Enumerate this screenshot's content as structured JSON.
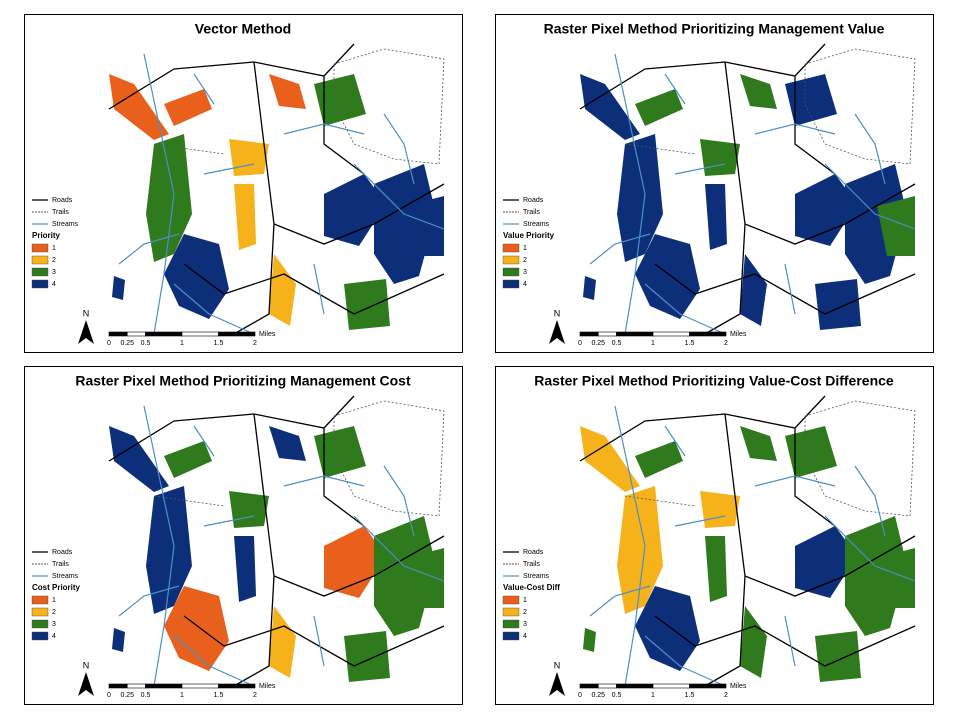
{
  "panels": [
    {
      "title": "Vector Method",
      "legend": {
        "lines": [
          "Roads",
          "Trails",
          "Streams"
        ],
        "heading": "Priority",
        "classes": [
          {
            "label": "1",
            "color": "#e8601c"
          },
          {
            "label": "2",
            "color": "#f5b21b"
          },
          {
            "label": "3",
            "color": "#2f7a1c"
          },
          {
            "label": "4",
            "color": "#0d2f7a"
          }
        ]
      },
      "scale": {
        "labels": [
          "0",
          "0.25",
          "0.5",
          "1",
          "1.5",
          "2"
        ],
        "unit": "Miles"
      },
      "north": "N"
    },
    {
      "title": "Raster Pixel Method Prioritizing Management Value",
      "legend": {
        "lines": [
          "Roads",
          "Trails",
          "Streams"
        ],
        "heading": "Value Priority",
        "classes": [
          {
            "label": "1",
            "color": "#e8601c"
          },
          {
            "label": "2",
            "color": "#f5b21b"
          },
          {
            "label": "3",
            "color": "#2f7a1c"
          },
          {
            "label": "4",
            "color": "#0d2f7a"
          }
        ]
      },
      "scale": {
        "labels": [
          "0",
          "0.25",
          "0.5",
          "1",
          "1.5",
          "2"
        ],
        "unit": "Miles"
      },
      "north": "N"
    },
    {
      "title": "Raster Pixel Method Prioritizing Management Cost",
      "legend": {
        "lines": [
          "Roads",
          "Trails",
          "Streams"
        ],
        "heading": "Cost Priority",
        "classes": [
          {
            "label": "1",
            "color": "#e8601c"
          },
          {
            "label": "2",
            "color": "#f5b21b"
          },
          {
            "label": "3",
            "color": "#2f7a1c"
          },
          {
            "label": "4",
            "color": "#0d2f7a"
          }
        ]
      },
      "scale": {
        "labels": [
          "0",
          "0.25",
          "0.5",
          "1",
          "1.5",
          "2"
        ],
        "unit": "Miles"
      },
      "north": "N"
    },
    {
      "title": "Raster Pixel Method Prioritizing Value-Cost Difference",
      "legend": {
        "lines": [
          "Roads",
          "Trails",
          "Streams"
        ],
        "heading": "Value-Cost Diff",
        "classes": [
          {
            "label": "1",
            "color": "#e8601c"
          },
          {
            "label": "2",
            "color": "#f5b21b"
          },
          {
            "label": "3",
            "color": "#2f7a1c"
          },
          {
            "label": "4",
            "color": "#0d2f7a"
          }
        ]
      },
      "scale": {
        "labels": [
          "0",
          "0.25",
          "0.5",
          "1",
          "1.5",
          "2"
        ],
        "unit": "Miles"
      },
      "north": "N"
    }
  ]
}
